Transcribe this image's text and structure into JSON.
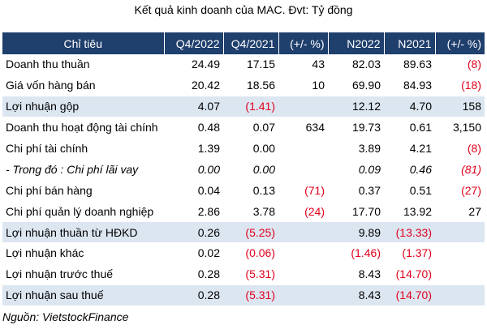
{
  "title": "Kết quả kinh doanh của MAC. Đvt: Tỷ đồng",
  "table": {
    "headers": [
      "Chỉ tiêu",
      "Q4/2022",
      "Q4/2021",
      "(+/- %)",
      "N2022",
      "N2021",
      "(+/- %)"
    ],
    "rows": [
      {
        "label": "Doanh thu thuần",
        "highlight": false,
        "italic": false,
        "cells": [
          {
            "v": "24.49",
            "neg": false
          },
          {
            "v": "17.15",
            "neg": false
          },
          {
            "v": "43",
            "neg": false
          },
          {
            "v": "82.03",
            "neg": false
          },
          {
            "v": "89.63",
            "neg": false
          },
          {
            "v": "(8)",
            "neg": true
          }
        ]
      },
      {
        "label": "Giá vốn hàng bán",
        "highlight": false,
        "italic": false,
        "cells": [
          {
            "v": "20.42",
            "neg": false
          },
          {
            "v": "18.56",
            "neg": false
          },
          {
            "v": "10",
            "neg": false
          },
          {
            "v": "69.90",
            "neg": false
          },
          {
            "v": "84.93",
            "neg": false
          },
          {
            "v": "(18)",
            "neg": true
          }
        ]
      },
      {
        "label": "Lợi nhuận gộp",
        "highlight": true,
        "italic": false,
        "cells": [
          {
            "v": "4.07",
            "neg": false
          },
          {
            "v": "(1.41)",
            "neg": true
          },
          {
            "v": "",
            "neg": false
          },
          {
            "v": "12.12",
            "neg": false
          },
          {
            "v": "4.70",
            "neg": false
          },
          {
            "v": "158",
            "neg": false
          }
        ]
      },
      {
        "label": "Doanh thu hoạt động tài chính",
        "highlight": false,
        "italic": false,
        "cells": [
          {
            "v": "0.48",
            "neg": false
          },
          {
            "v": "0.07",
            "neg": false
          },
          {
            "v": "634",
            "neg": false
          },
          {
            "v": "19.73",
            "neg": false
          },
          {
            "v": "0.61",
            "neg": false
          },
          {
            "v": "3,150",
            "neg": false
          }
        ]
      },
      {
        "label": "Chi phí tài chính",
        "highlight": false,
        "italic": false,
        "cells": [
          {
            "v": "1.39",
            "neg": false
          },
          {
            "v": "0.00",
            "neg": false
          },
          {
            "v": "",
            "neg": false
          },
          {
            "v": "3.89",
            "neg": false
          },
          {
            "v": "4.21",
            "neg": false
          },
          {
            "v": "(8)",
            "neg": true
          }
        ]
      },
      {
        "label": "- Trong đó : Chi phí lãi vay",
        "highlight": false,
        "italic": true,
        "cells": [
          {
            "v": "0.00",
            "neg": false
          },
          {
            "v": "0.00",
            "neg": false
          },
          {
            "v": "",
            "neg": false
          },
          {
            "v": "0.09",
            "neg": false
          },
          {
            "v": "0.46",
            "neg": false
          },
          {
            "v": "(81)",
            "neg": true
          }
        ]
      },
      {
        "label": "Chi phí bán hàng",
        "highlight": false,
        "italic": false,
        "cells": [
          {
            "v": "0.04",
            "neg": false
          },
          {
            "v": "0.13",
            "neg": false
          },
          {
            "v": "(71)",
            "neg": true
          },
          {
            "v": "0.37",
            "neg": false
          },
          {
            "v": "0.51",
            "neg": false
          },
          {
            "v": "(27)",
            "neg": true
          }
        ]
      },
      {
        "label": "Chi phí quản lý doanh nghiệp",
        "highlight": false,
        "italic": false,
        "cells": [
          {
            "v": "2.86",
            "neg": false
          },
          {
            "v": "3.78",
            "neg": false
          },
          {
            "v": "(24)",
            "neg": true
          },
          {
            "v": "17.70",
            "neg": false
          },
          {
            "v": "13.92",
            "neg": false
          },
          {
            "v": "27",
            "neg": false
          }
        ]
      },
      {
        "label": "Lợi nhuận thuần từ HĐKD",
        "highlight": true,
        "italic": false,
        "cells": [
          {
            "v": "0.26",
            "neg": false
          },
          {
            "v": "(5.25)",
            "neg": true
          },
          {
            "v": "",
            "neg": false
          },
          {
            "v": "9.89",
            "neg": false
          },
          {
            "v": "(13.33)",
            "neg": true
          },
          {
            "v": "",
            "neg": false
          }
        ]
      },
      {
        "label": "Lợi nhuận khác",
        "highlight": false,
        "italic": false,
        "cells": [
          {
            "v": "0.02",
            "neg": false
          },
          {
            "v": "(0.06)",
            "neg": true
          },
          {
            "v": "",
            "neg": false
          },
          {
            "v": "(1.46)",
            "neg": true
          },
          {
            "v": "(1.37)",
            "neg": true
          },
          {
            "v": "",
            "neg": false
          }
        ]
      },
      {
        "label": "Lợi nhuận trước thuế",
        "highlight": false,
        "italic": false,
        "cells": [
          {
            "v": "0.28",
            "neg": false
          },
          {
            "v": "(5.31)",
            "neg": true
          },
          {
            "v": "",
            "neg": false
          },
          {
            "v": "8.43",
            "neg": false
          },
          {
            "v": "(14.70)",
            "neg": true
          },
          {
            "v": "",
            "neg": false
          }
        ]
      },
      {
        "label": "Lợi nhuận sau thuế",
        "highlight": true,
        "italic": false,
        "cells": [
          {
            "v": "0.28",
            "neg": false
          },
          {
            "v": "(5.31)",
            "neg": true
          },
          {
            "v": "",
            "neg": false
          },
          {
            "v": "8.43",
            "neg": false
          },
          {
            "v": "(14.70)",
            "neg": true
          },
          {
            "v": "",
            "neg": false
          }
        ]
      }
    ]
  },
  "source": "Nguồn: VietstockFinance",
  "colors": {
    "header_bg": "#1f3f6d",
    "highlight_bg": "#dce6f1",
    "negative": "#e0001b"
  }
}
